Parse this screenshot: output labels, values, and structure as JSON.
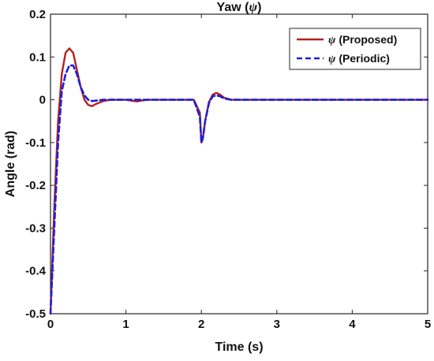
{
  "chart_data": {
    "type": "line",
    "title_prefix": "Yaw (",
    "title_symbol": "ψ",
    "title_suffix": ")",
    "xlabel": "Time (s)",
    "ylabel": "Angle (rad)",
    "xlim": [
      0,
      5
    ],
    "ylim": [
      -0.5,
      0.2
    ],
    "x_ticks": [
      0,
      1,
      2,
      3,
      4,
      5
    ],
    "y_ticks": [
      -0.5,
      -0.4,
      -0.3,
      -0.2,
      -0.1,
      0,
      0.1,
      0.2
    ],
    "x_tick_labels": [
      "0",
      "1",
      "2",
      "3",
      "4",
      "5"
    ],
    "y_tick_labels": [
      "-0.5",
      "-0.4",
      "-0.3",
      "-0.2",
      "-0.1",
      "0",
      "0.1",
      "0.2"
    ],
    "grid": false,
    "legend_position": "top-right",
    "series": [
      {
        "symbol": "ψ",
        "label": "(Proposed)",
        "color": "#b22222",
        "style": "solid",
        "x": [
          0,
          0.05,
          0.1,
          0.15,
          0.2,
          0.25,
          0.3,
          0.35,
          0.4,
          0.45,
          0.5,
          0.55,
          0.6,
          0.7,
          0.8,
          0.9,
          1.0,
          1.1,
          1.15,
          1.2,
          1.3,
          1.5,
          1.9,
          1.98,
          2.0,
          2.02,
          2.05,
          2.1,
          2.15,
          2.2,
          2.25,
          2.3,
          2.4,
          2.5,
          3.0,
          4.0,
          5.0
        ],
        "y": [
          -0.5,
          -0.25,
          -0.05,
          0.06,
          0.11,
          0.12,
          0.11,
          0.07,
          0.03,
          0.0,
          -0.012,
          -0.015,
          -0.01,
          -0.003,
          0.0,
          0.0,
          0.0,
          -0.003,
          -0.004,
          -0.002,
          0.0,
          0.0,
          0.0,
          -0.03,
          -0.1,
          -0.09,
          -0.05,
          -0.005,
          0.012,
          0.016,
          0.012,
          0.005,
          0.0,
          0.0,
          0.0,
          0.0,
          0.0
        ]
      },
      {
        "symbol": "ψ",
        "label": "(Periodic)",
        "color": "#1f1fd6",
        "style": "dashed",
        "x": [
          0,
          0.05,
          0.1,
          0.15,
          0.2,
          0.25,
          0.3,
          0.35,
          0.4,
          0.45,
          0.5,
          0.55,
          0.6,
          0.7,
          0.8,
          1.0,
          1.5,
          1.9,
          1.98,
          2.0,
          2.02,
          2.05,
          2.1,
          2.15,
          2.2,
          2.25,
          2.3,
          2.4,
          2.5,
          3.0,
          4.0,
          5.0
        ],
        "y": [
          -0.5,
          -0.3,
          -0.1,
          0.02,
          0.06,
          0.08,
          0.08,
          0.06,
          0.03,
          0.01,
          0.0,
          -0.003,
          -0.002,
          0.0,
          0.0,
          0.0,
          0.0,
          0.0,
          -0.04,
          -0.1,
          -0.09,
          -0.05,
          -0.008,
          0.008,
          0.01,
          0.008,
          0.003,
          0.0,
          0.0,
          0.0,
          0.0,
          0.0
        ]
      }
    ]
  }
}
